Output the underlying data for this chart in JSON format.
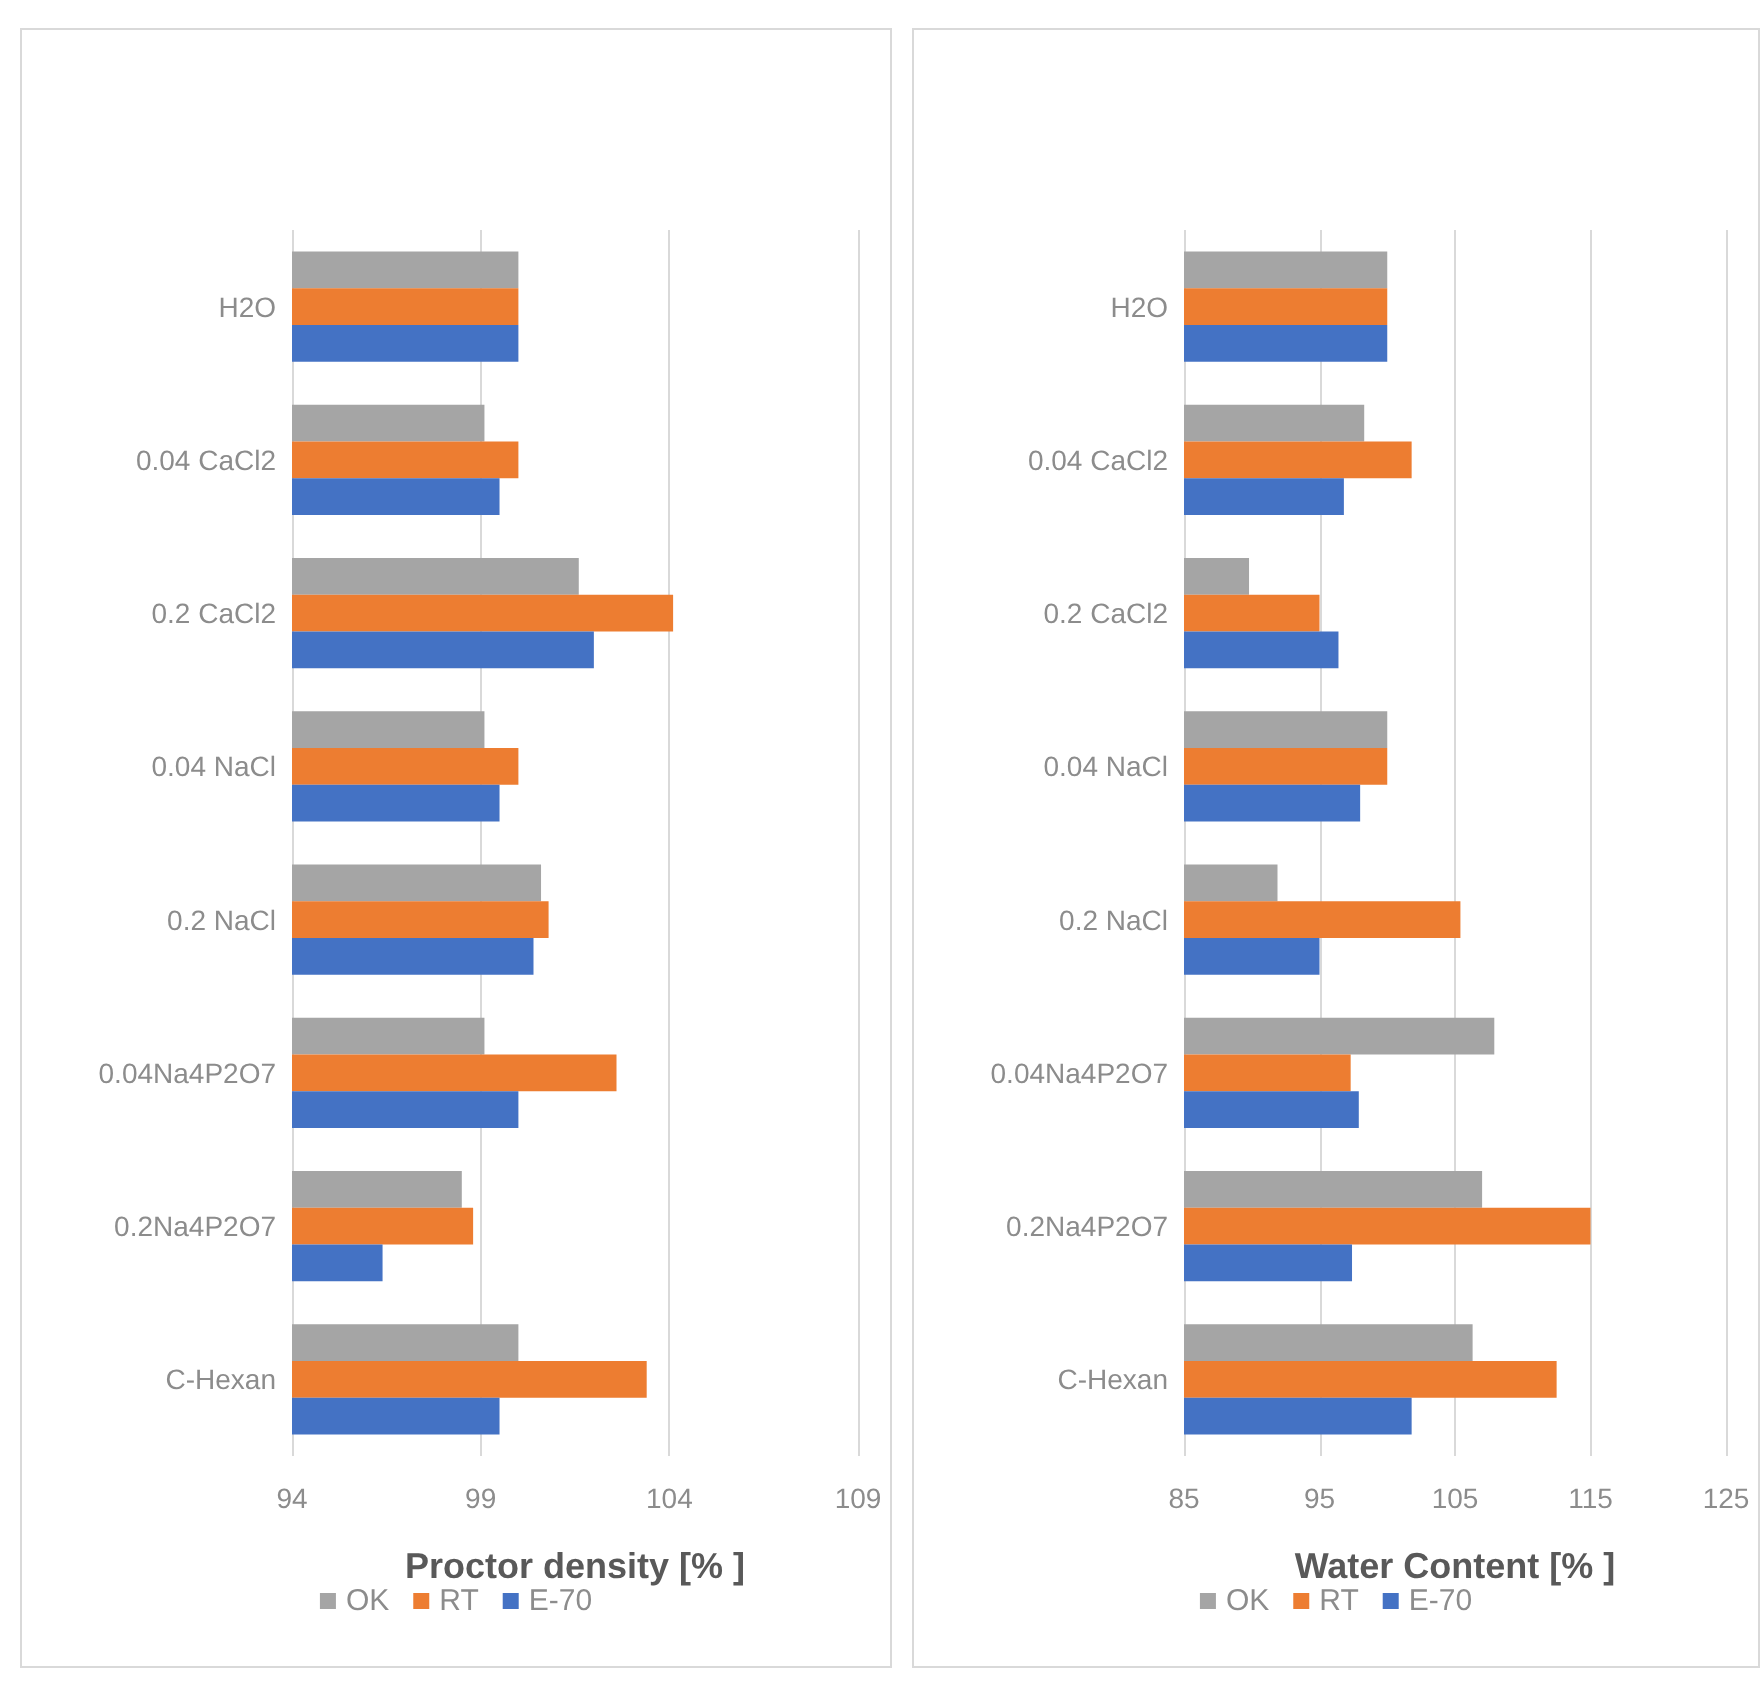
{
  "chart_data": [
    {
      "type": "bar",
      "orientation": "horizontal",
      "xlabel": "Proctor density [% ]",
      "categories": [
        "H2O",
        "0.04 CaCl2",
        "0.2 CaCl2",
        "0.04 NaCl",
        "0.2 NaCl",
        "0.04Na4P2O7",
        "0.2Na4P2O7",
        "C-Hexan"
      ],
      "series": [
        {
          "name": "OK",
          "color": "#a5a5a5",
          "values": [
            100,
            99.1,
            101.6,
            99.1,
            100.6,
            99.1,
            98.5,
            100
          ]
        },
        {
          "name": "RT",
          "color": "#ed7d31",
          "values": [
            100,
            100,
            104.1,
            100,
            100.8,
            102.6,
            98.8,
            103.4
          ]
        },
        {
          "name": "E-70",
          "color": "#4472c4",
          "values": [
            100,
            99.5,
            102,
            99.5,
            100.4,
            100,
            96.4,
            99.5
          ]
        }
      ],
      "xlim": [
        94,
        109
      ],
      "xticks": [
        94,
        99,
        104,
        109
      ],
      "grid": "x",
      "legend": "bottom"
    },
    {
      "type": "bar",
      "orientation": "horizontal",
      "xlabel": "Water Content [% ]",
      "categories": [
        "H2O",
        "0.04 CaCl2",
        "0.2 CaCl2",
        "0.04 NaCl",
        "0.2 NaCl",
        "0.04Na4P2O7",
        "0.2Na4P2O7",
        "C-Hexan"
      ],
      "series": [
        {
          "name": "OK",
          "color": "#a5a5a5",
          "values": [
            100,
            98.3,
            89.8,
            100,
            91.9,
            107.9,
            107,
            106.3
          ]
        },
        {
          "name": "RT",
          "color": "#ed7d31",
          "values": [
            100,
            101.8,
            95,
            100,
            105.4,
            97.3,
            115,
            112.5
          ]
        },
        {
          "name": "E-70",
          "color": "#4472c4",
          "values": [
            100,
            96.8,
            96.4,
            98,
            95,
            97.9,
            97.4,
            101.8
          ]
        }
      ],
      "xlim": [
        85,
        125
      ],
      "xticks": [
        85,
        95,
        105,
        115,
        125
      ],
      "grid": "x",
      "legend": "bottom"
    }
  ]
}
